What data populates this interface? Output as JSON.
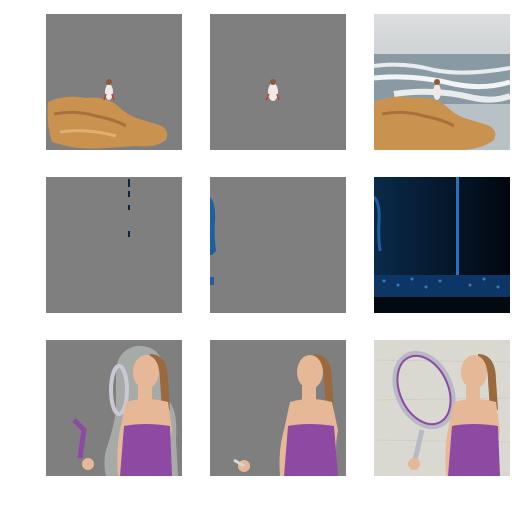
{
  "grid": {
    "rows": 3,
    "columns": 3,
    "mask_gray": "#7f7f7f",
    "row1": {
      "panels": [
        "mask-rocks-and-person",
        "mask-person-only",
        "source-beach-photo"
      ],
      "colors": {
        "sky": "#d8dadb",
        "sea": "#8a9aa3",
        "foam": "#e8ecee",
        "rock": "#c9924f"
      }
    },
    "row2": {
      "panels": [
        "mask-thin-vertical-line",
        "mask-blue-edge-streak",
        "source-dark-blue-scene"
      ],
      "colors": {
        "dark": "#031426",
        "glow": "#1a5a9a",
        "pole": "#2a6fc4"
      }
    },
    "row3": {
      "panels": [
        "mask-woman-with-racket",
        "mask-woman-tight",
        "source-woman-racket-photo"
      ],
      "colors": {
        "top": "#8e4aa3",
        "skin": "#e6b898",
        "hair": "#9a6a3e",
        "bg": "#d9d9d2"
      }
    }
  }
}
